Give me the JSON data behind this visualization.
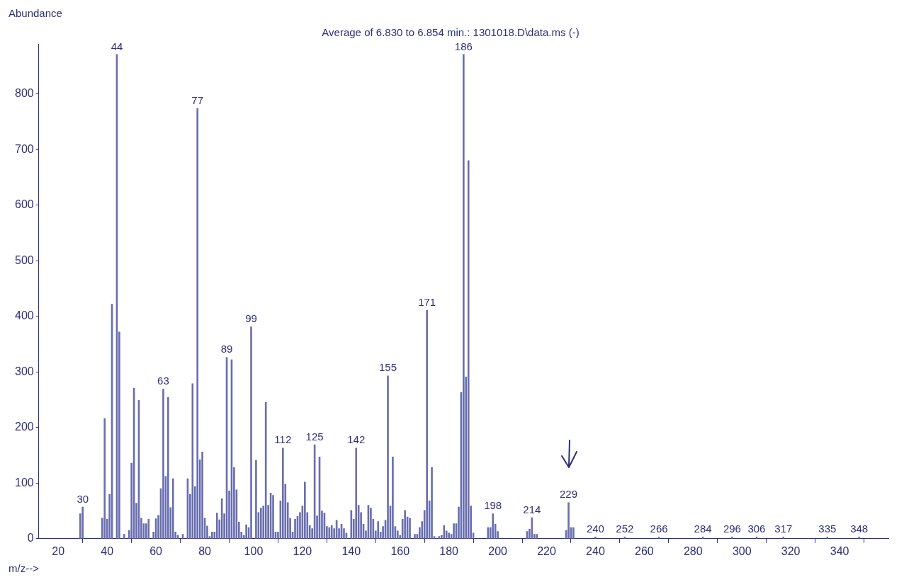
{
  "chart_data": {
    "type": "bar",
    "title": "Average of 6.830 to 6.854 min.: 1301018.D\\data.ms (-)",
    "ylabel": "Abundance",
    "xlabel": "m/z-->",
    "color": "#6a6fb0",
    "x": [
      29,
      30,
      38,
      39,
      40,
      41,
      42,
      44,
      45,
      47,
      49,
      50,
      51,
      52,
      53,
      54,
      55,
      56,
      57,
      59,
      60,
      61,
      62,
      63,
      64,
      65,
      66,
      67,
      68,
      69,
      71,
      73,
      74,
      75,
      76,
      77,
      78,
      79,
      80,
      81,
      82,
      83,
      84,
      85,
      86,
      87,
      88,
      89,
      90,
      91,
      92,
      93,
      94,
      95,
      96,
      97,
      98,
      99,
      101,
      102,
      103,
      104,
      105,
      106,
      107,
      108,
      109,
      110,
      111,
      112,
      113,
      114,
      115,
      116,
      117,
      118,
      119,
      120,
      121,
      122,
      123,
      124,
      125,
      126,
      127,
      128,
      129,
      130,
      131,
      132,
      133,
      134,
      135,
      136,
      137,
      138,
      140,
      141,
      142,
      143,
      144,
      145,
      146,
      147,
      148,
      149,
      150,
      151,
      152,
      153,
      154,
      155,
      156,
      157,
      158,
      159,
      160,
      161,
      162,
      163,
      164,
      166,
      167,
      168,
      169,
      170,
      171,
      172,
      173,
      174,
      176,
      177,
      178,
      179,
      180,
      181,
      182,
      183,
      184,
      185,
      186,
      187,
      188,
      189,
      190,
      196,
      197,
      198,
      199,
      200,
      212,
      213,
      214,
      215,
      216,
      228,
      229,
      230,
      231,
      240,
      252,
      266,
      284,
      296,
      306,
      317,
      335,
      348
    ],
    "values": [
      45,
      57,
      37,
      216,
      35,
      80,
      422,
      871,
      372,
      8,
      15,
      136,
      271,
      64,
      249,
      37,
      27,
      27,
      35,
      12,
      36,
      42,
      90,
      269,
      112,
      254,
      56,
      108,
      12,
      6,
      8,
      108,
      80,
      279,
      94,
      774,
      142,
      156,
      37,
      23,
      4,
      12,
      12,
      46,
      34,
      72,
      45,
      326,
      86,
      322,
      128,
      88,
      30,
      12,
      6,
      25,
      20,
      381,
      141,
      47,
      55,
      59,
      245,
      60,
      82,
      78,
      12,
      12,
      68,
      163,
      98,
      65,
      37,
      12,
      35,
      40,
      47,
      59,
      102,
      47,
      24,
      18,
      169,
      41,
      147,
      50,
      46,
      22,
      20,
      24,
      18,
      33,
      18,
      26,
      18,
      10,
      51,
      35,
      163,
      60,
      47,
      26,
      14,
      60,
      55,
      35,
      14,
      31,
      12,
      22,
      33,
      293,
      59,
      147,
      22,
      14,
      6,
      35,
      51,
      39,
      37,
      8,
      8,
      20,
      31,
      51,
      411,
      68,
      128,
      4,
      4,
      6,
      24,
      14,
      10,
      8,
      27,
      27,
      57,
      263,
      871,
      291,
      680,
      59,
      10,
      20,
      20,
      45,
      26,
      13,
      13,
      17,
      38,
      8,
      8,
      15,
      65,
      20,
      20,
      3,
      3,
      3,
      3,
      3,
      3,
      3,
      3,
      3
    ],
    "xlim": [
      12,
      360
    ],
    "xticks": [
      20,
      40,
      60,
      80,
      100,
      120,
      140,
      160,
      180,
      200,
      220,
      240,
      260,
      280,
      300,
      320,
      340
    ],
    "ylim": [
      0,
      890
    ],
    "yticks": [
      0,
      100,
      200,
      300,
      400,
      500,
      600,
      700,
      800
    ],
    "legend": false,
    "annotations": [
      {
        "text": "30",
        "x": 30,
        "y": 57
      },
      {
        "text": "44",
        "x": 44,
        "y": 871
      },
      {
        "text": "63",
        "x": 63,
        "y": 269
      },
      {
        "text": "77",
        "x": 77,
        "y": 774
      },
      {
        "text": "89",
        "x": 89,
        "y": 326
      },
      {
        "text": "99",
        "x": 99,
        "y": 381
      },
      {
        "text": "112",
        "x": 112,
        "y": 163
      },
      {
        "text": "125",
        "x": 125,
        "y": 169
      },
      {
        "text": "142",
        "x": 142,
        "y": 163
      },
      {
        "text": "155",
        "x": 155,
        "y": 293
      },
      {
        "text": "171",
        "x": 171,
        "y": 411
      },
      {
        "text": "186",
        "x": 186,
        "y": 871
      },
      {
        "text": "198",
        "x": 198,
        "y": 45
      },
      {
        "text": "214",
        "x": 214,
        "y": 38
      },
      {
        "text": "229",
        "x": 229,
        "y": 65
      },
      {
        "text": "240",
        "x": 240,
        "y": 3
      },
      {
        "text": "252",
        "x": 252,
        "y": 3
      },
      {
        "text": "266",
        "x": 266,
        "y": 3
      },
      {
        "text": "284",
        "x": 284,
        "y": 3
      },
      {
        "text": "296",
        "x": 296,
        "y": 3
      },
      {
        "text": "306",
        "x": 306,
        "y": 3
      },
      {
        "text": "317",
        "x": 317,
        "y": 3
      },
      {
        "text": "335",
        "x": 335,
        "y": 3
      },
      {
        "text": "348",
        "x": 348,
        "y": 3
      }
    ]
  }
}
